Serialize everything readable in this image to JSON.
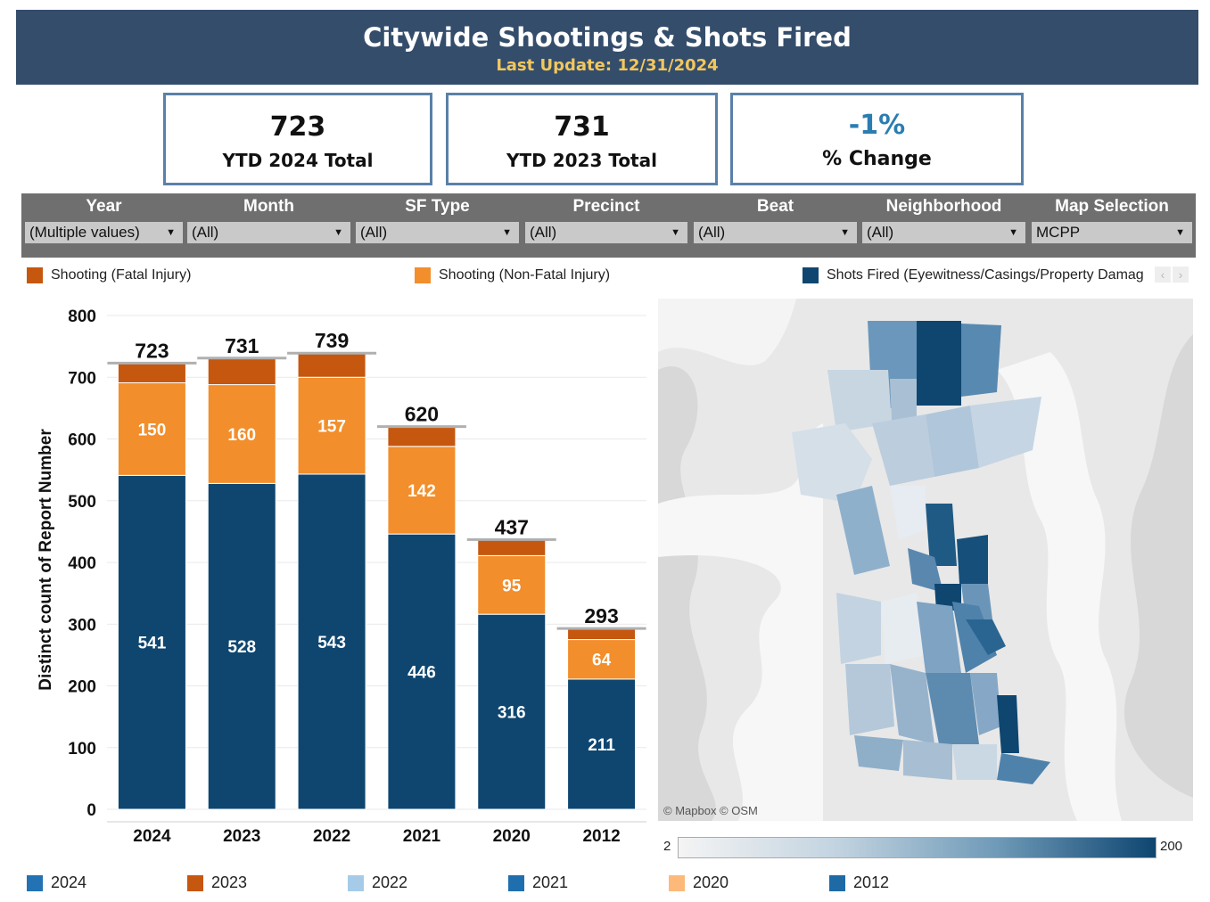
{
  "header": {
    "title": "Citywide Shootings & Shots Fired",
    "last_update": "Last Update: 12/31/2024"
  },
  "kpis": {
    "ytd_2024": {
      "value": "723",
      "label": "YTD 2024 Total"
    },
    "ytd_2023": {
      "value": "731",
      "label": "YTD 2023 Total"
    },
    "change": {
      "value": "-1%",
      "label": "% Change"
    }
  },
  "filters": [
    {
      "label": "Year",
      "value": "(Multiple values)"
    },
    {
      "label": "Month",
      "value": "(All)"
    },
    {
      "label": "SF Type",
      "value": "(All)"
    },
    {
      "label": "Precinct",
      "value": "(All)"
    },
    {
      "label": "Beat",
      "value": "(All)"
    },
    {
      "label": "Neighborhood",
      "value": "(All)"
    },
    {
      "label": "Map Selection",
      "value": "MCPP"
    }
  ],
  "type_legend": [
    {
      "label": "Shooting (Fatal Injury)",
      "color": "#c5570f"
    },
    {
      "label": "Shooting (Non-Fatal Injury)",
      "color": "#f28e2b"
    },
    {
      "label": "Shots Fired (Eyewitness/Casings/Property Damag",
      "color": "#0e4670"
    }
  ],
  "chart_data": {
    "type": "bar",
    "stacked": true,
    "categories": [
      "2024",
      "2023",
      "2022",
      "2021",
      "2020",
      "2012"
    ],
    "series": [
      {
        "name": "Shots Fired (Eyewitness/Casings/Property Damag",
        "color": "#0e4670",
        "values": [
          541,
          528,
          543,
          446,
          316,
          211
        ]
      },
      {
        "name": "Shooting (Non-Fatal Injury)",
        "color": "#f28e2b",
        "values": [
          150,
          160,
          157,
          142,
          95,
          64
        ]
      },
      {
        "name": "Shooting (Fatal Injury)",
        "color": "#c5570f",
        "values": [
          32,
          43,
          39,
          32,
          26,
          18
        ]
      }
    ],
    "totals": [
      723,
      731,
      739,
      620,
      437,
      293
    ],
    "ylabel": "Distinct count of Report Number",
    "ylim": [
      0,
      800
    ],
    "yticks": [
      0,
      100,
      200,
      300,
      400,
      500,
      600,
      700,
      800
    ],
    "grid": true
  },
  "map": {
    "attribution": "© Mapbox  © OSM",
    "scale_min": "2",
    "scale_max": "200"
  },
  "year_legend": [
    {
      "label": "2024",
      "color": "#2272b4"
    },
    {
      "label": "2023",
      "color": "#c5570f"
    },
    {
      "label": "2022",
      "color": "#a6cbe8"
    },
    {
      "label": "2021",
      "color": "#1f6fae"
    },
    {
      "label": "2020",
      "color": "#fdb97a"
    },
    {
      "label": "2012",
      "color": "#1e6aa5"
    }
  ]
}
